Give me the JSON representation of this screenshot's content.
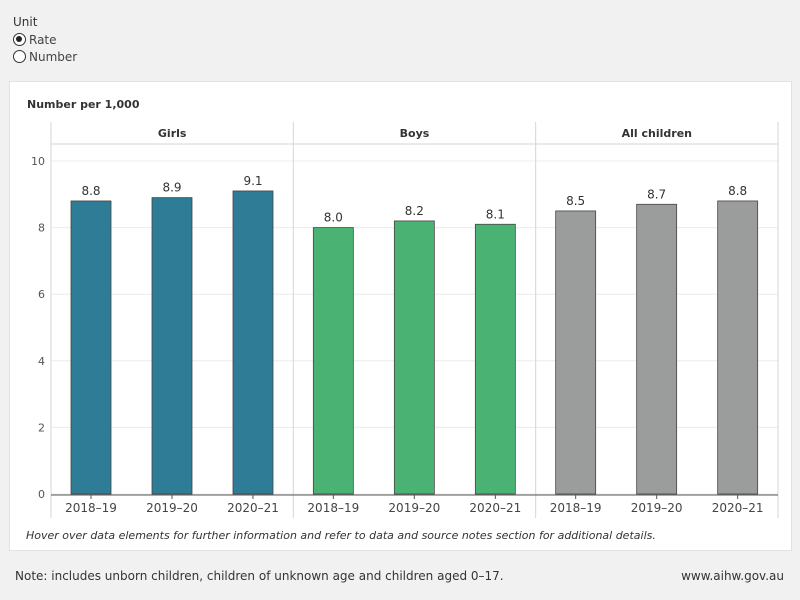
{
  "unit_selector": {
    "title": "Unit",
    "options": [
      {
        "label": "Rate",
        "checked": true
      },
      {
        "label": "Number",
        "checked": false
      }
    ]
  },
  "chart_data": {
    "type": "bar",
    "ylabel": "Number per 1,000",
    "ylim": [
      0,
      10.5
    ],
    "yticks": [
      0,
      2,
      4,
      6,
      8,
      10
    ],
    "grid": true,
    "categories": [
      "2018–19",
      "2019–20",
      "2020–21"
    ],
    "panels": [
      {
        "name": "Girls",
        "color": "#2e7c95",
        "values": [
          8.8,
          8.9,
          9.1
        ],
        "labels": [
          "8.8",
          "8.9",
          "9.1"
        ]
      },
      {
        "name": "Boys",
        "color": "#4ab374",
        "values": [
          8.0,
          8.2,
          8.1
        ],
        "labels": [
          "8.0",
          "8.2",
          "8.1"
        ]
      },
      {
        "name": "All children",
        "color": "#9a9d9c",
        "values": [
          8.5,
          8.7,
          8.8
        ],
        "labels": [
          "8.5",
          "8.7",
          "8.8"
        ]
      }
    ]
  },
  "hover_note": "Hover over data elements for further information and refer to data and source notes section for additional details.",
  "footer": {
    "note": "Note: includes unborn children, children of unknown age and children aged 0–17.",
    "url": "www.aihw.gov.au"
  }
}
